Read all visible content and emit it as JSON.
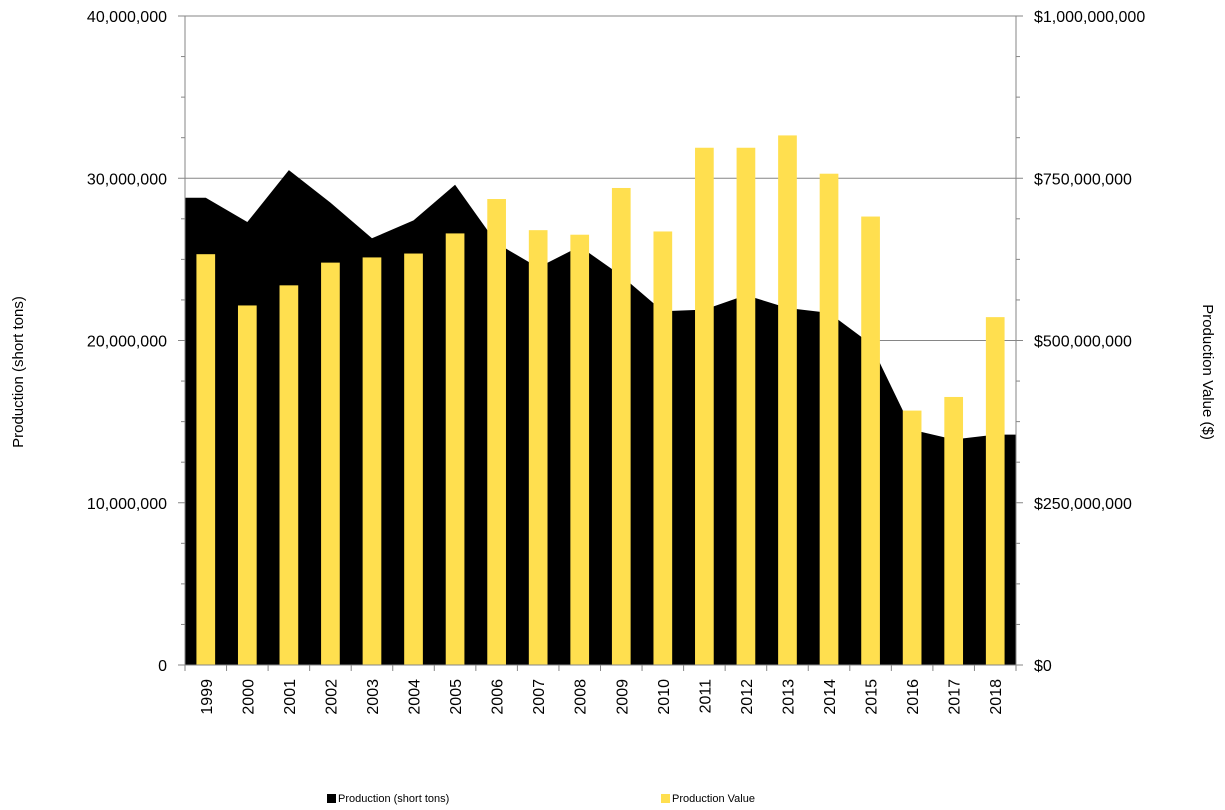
{
  "chart_data": {
    "type": "bar",
    "categories": [
      "1999",
      "2000",
      "2001",
      "2002",
      "2003",
      "2004",
      "2005",
      "2006",
      "2007",
      "2008",
      "2009",
      "2010",
      "2011",
      "2012",
      "2013",
      "2014",
      "2015",
      "2016",
      "2017",
      "2018"
    ],
    "series": [
      {
        "name": "Production (short tons)",
        "type": "area",
        "axis": "left",
        "color": "#000000",
        "values": [
          28800000,
          27300000,
          30500000,
          28500000,
          26300000,
          27400000,
          29600000,
          26000000,
          24500000,
          25800000,
          24000000,
          21800000,
          21900000,
          22800000,
          22000000,
          21700000,
          19800000,
          14500000,
          13900000,
          14200000
        ]
      },
      {
        "name": "Production Value",
        "type": "bar",
        "axis": "right",
        "color": "#FFDF4F",
        "values": [
          633000000,
          554000000,
          585000000,
          620000000,
          628000000,
          634000000,
          665000000,
          718000000,
          670000000,
          663000000,
          735000000,
          668000000,
          797000000,
          797000000,
          816000000,
          757000000,
          691000000,
          392000000,
          413000000,
          536000000
        ]
      }
    ],
    "ylabel": "Production (short tons)",
    "y2label": "Production Value ($)",
    "ylim": [
      0,
      40000000
    ],
    "y2lim": [
      0,
      1000000000
    ],
    "y_ticks": [
      "0",
      "10,000,000",
      "20,000,000",
      "30,000,000",
      "40,000,000"
    ],
    "y2_ticks": [
      "$0",
      "$250,000,000",
      "$500,000,000",
      "$750,000,000",
      "$1,000,000,000"
    ],
    "grid": true,
    "legend_position": "bottom"
  }
}
